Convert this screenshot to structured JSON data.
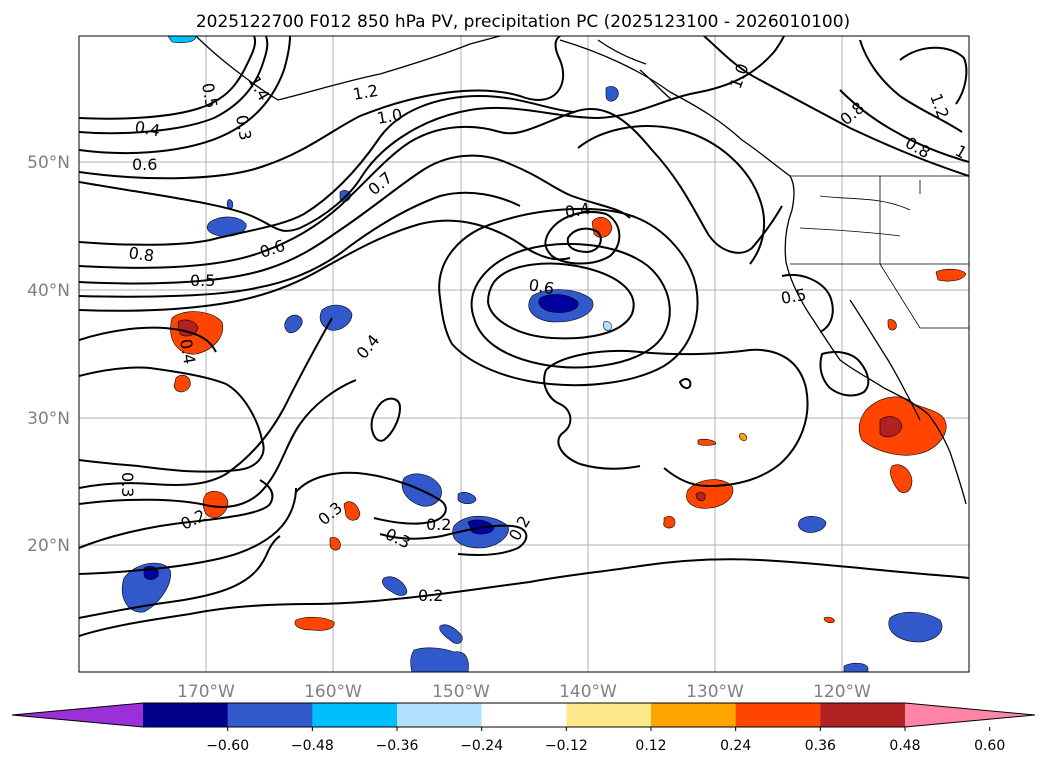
{
  "title": "2025122700 F012 850 hPa PV, precipitation PC (2025123100 - 2026010100)",
  "lat_labels": [
    "50°N",
    "40°N",
    "30°N",
    "20°N"
  ],
  "lon_labels": [
    "170°W",
    "160°W",
    "150°W",
    "140°W",
    "130°W",
    "120°W"
  ],
  "colorbar": {
    "ticks": [
      "−0.60",
      "−0.48",
      "−0.36",
      "−0.24",
      "−0.12",
      "0.12",
      "0.24",
      "0.36",
      "0.48",
      "0.60"
    ],
    "colors": [
      "#9b30d8",
      "#00008b",
      "#3159cc",
      "#00bfff",
      "#b0e2ff",
      "#ffffff",
      "#fde98c",
      "#ffa500",
      "#ff4500",
      "#b22222",
      "#ff85a8"
    ]
  },
  "contour_labels": [
    "0.4",
    "0.6",
    "0.8",
    "0.5",
    "0.6",
    "0.7",
    "1.0",
    "1.2",
    "1.4",
    "0.5",
    "0.3",
    "0.4",
    "0.6",
    "0.4",
    "0.5",
    "0.4",
    "0.3",
    "0.2",
    "0.3",
    "0.3",
    "0.2",
    "0.2",
    "0.2",
    "1.0",
    "0.8",
    "0.8",
    "1.2",
    "1"
  ],
  "colors": {
    "contour": "#000000",
    "grid": "#b0b0b0",
    "axis_label": "#808080"
  }
}
